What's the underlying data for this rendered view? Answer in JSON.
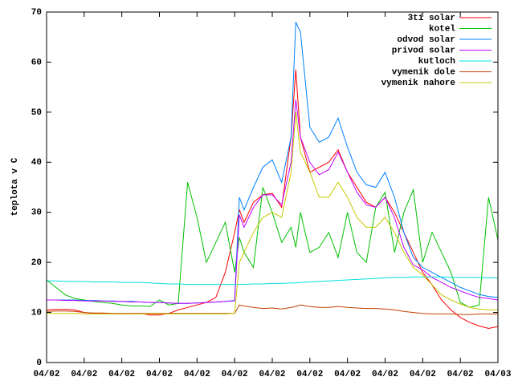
{
  "chart_data": {
    "type": "line",
    "ylabel": "teplota v C",
    "x": [
      0,
      0.5,
      1,
      1.5,
      2,
      2.5,
      3,
      3.5,
      4,
      4.5,
      5,
      5.5,
      6,
      6.5,
      7,
      7.5,
      8,
      8.5,
      9,
      9.5,
      10,
      10.25,
      10.5,
      11,
      11.5,
      12,
      12.5,
      13,
      13.25,
      13.5,
      14,
      14.5,
      15,
      15.5,
      16,
      16.5,
      17,
      17.5,
      18,
      18.5,
      19,
      19.5,
      20,
      20.5,
      21,
      21.5,
      22,
      22.5,
      23,
      23.5,
      24
    ],
    "xlim": [
      0,
      24
    ],
    "xticks": [
      {
        "value": 0,
        "label": "04/02"
      },
      {
        "value": 2,
        "label": "04/02"
      },
      {
        "value": 4,
        "label": "04/02"
      },
      {
        "value": 6,
        "label": "04/02"
      },
      {
        "value": 8,
        "label": "04/02"
      },
      {
        "value": 10,
        "label": "04/02"
      },
      {
        "value": 12,
        "label": "04/02"
      },
      {
        "value": 14,
        "label": "04/02"
      },
      {
        "value": 16,
        "label": "04/02"
      },
      {
        "value": 18,
        "label": "04/02"
      },
      {
        "value": 20,
        "label": "04/02"
      },
      {
        "value": 22,
        "label": "04/02"
      },
      {
        "value": 24,
        "label": "04/03"
      }
    ],
    "ylim": [
      0,
      70
    ],
    "yticks": [
      0,
      10,
      20,
      30,
      40,
      50,
      60,
      70
    ],
    "legend": "top-right",
    "series": [
      {
        "name": "3ti solar",
        "color": "#ff0000",
        "values": [
          10.5,
          10.6,
          10.6,
          10.5,
          10,
          9.8,
          9.8,
          9.7,
          9.7,
          9.7,
          9.8,
          9.5,
          9.5,
          9.8,
          10.5,
          11,
          11.5,
          12,
          13,
          18,
          26,
          30.5,
          28,
          32,
          33.5,
          33.8,
          31,
          45,
          58.5,
          45,
          38,
          39,
          40,
          42.5,
          38,
          35,
          32,
          31,
          33,
          30,
          26,
          22,
          18,
          15.5,
          12.5,
          10.5,
          9,
          8,
          7.3,
          6.8,
          7.2
        ]
      },
      {
        "name": "kotel",
        "color": "#00c000",
        "values": [
          16.5,
          15,
          13.5,
          12.8,
          12.5,
          12.2,
          12,
          11.8,
          11.5,
          11.3,
          11.3,
          11.2,
          12.5,
          11.5,
          11.8,
          36,
          29,
          20,
          24,
          28,
          18,
          25,
          22,
          19,
          35,
          30,
          24,
          27,
          23,
          30,
          22,
          23,
          26,
          21,
          30,
          22,
          20,
          31,
          34,
          22,
          30,
          34.5,
          20,
          26,
          22,
          18,
          12,
          11,
          11.5,
          33,
          24.5
        ]
      },
      {
        "name": "odvod solar",
        "color": "#0080ff",
        "values": [
          12.5,
          12.5,
          12.5,
          12.5,
          12.4,
          12.4,
          12.3,
          12.3,
          12.2,
          12.2,
          12.1,
          12,
          12,
          11.9,
          11.8,
          11.8,
          11.9,
          12,
          12.1,
          12.2,
          12.4,
          33,
          30.5,
          35,
          39,
          40.5,
          36,
          45,
          68,
          66,
          47,
          44,
          45,
          48.8,
          43,
          38,
          35.5,
          35,
          38,
          33,
          26,
          21,
          19,
          18,
          17,
          16,
          15,
          14.3,
          13.6,
          13.2,
          13
        ]
      },
      {
        "name": "privod solar",
        "color": "#c000ff",
        "values": [
          12.5,
          12.5,
          12.4,
          12.4,
          12.3,
          12.3,
          12.3,
          12.2,
          12.2,
          12.1,
          12.1,
          12,
          12,
          11.9,
          11.8,
          11.8,
          11.9,
          12,
          12.1,
          12.2,
          12.3,
          29.5,
          27,
          31,
          33.5,
          33.5,
          31.5,
          40,
          52.5,
          45,
          40,
          37.5,
          38.5,
          42,
          38,
          34,
          31.5,
          31,
          33,
          29,
          23,
          19.5,
          18.5,
          17,
          16,
          15,
          14.3,
          13.6,
          13,
          12.8,
          12.5
        ]
      },
      {
        "name": "kutloch",
        "color": "#00e0e0",
        "values": [
          16.3,
          16.3,
          16.2,
          16.2,
          16.2,
          16.1,
          16.1,
          16.1,
          16,
          16,
          16,
          15.9,
          15.8,
          15.7,
          15.7,
          15.6,
          15.6,
          15.6,
          15.6,
          15.6,
          15.6,
          15.6,
          15.6,
          15.7,
          15.7,
          15.8,
          15.8,
          15.9,
          15.9,
          16,
          16.1,
          16.2,
          16.3,
          16.4,
          16.5,
          16.6,
          16.7,
          16.8,
          16.9,
          17,
          17,
          17.1,
          17.1,
          17.1,
          17.1,
          17,
          17,
          17,
          17,
          16.9,
          16.9
        ]
      },
      {
        "name": "vymenik dole",
        "color": "#c04000",
        "values": [
          10.2,
          10.3,
          10.3,
          10.2,
          10,
          9.9,
          9.9,
          9.8,
          9.8,
          9.8,
          9.8,
          9.8,
          9.8,
          9.8,
          9.8,
          9.8,
          9.8,
          9.8,
          9.8,
          9.8,
          9.8,
          11.5,
          11.3,
          11,
          10.8,
          10.9,
          10.7,
          11,
          11.2,
          11.5,
          11.2,
          11,
          11,
          11.2,
          11,
          10.9,
          10.8,
          10.8,
          10.7,
          10.5,
          10.2,
          10,
          9.8,
          9.7,
          9.7,
          9.7,
          9.6,
          9.6,
          9.7,
          9.7,
          9.7
        ]
      },
      {
        "name": "vymenik nahore",
        "color": "#c8c800",
        "values": [
          9.8,
          9.8,
          9.8,
          9.8,
          9.7,
          9.7,
          9.7,
          9.7,
          9.7,
          9.7,
          9.7,
          9.7,
          9.7,
          9.7,
          9.7,
          9.7,
          9.7,
          9.7,
          9.7,
          9.7,
          9.8,
          20,
          22,
          26,
          29,
          30,
          29,
          38,
          50,
          42,
          38,
          33,
          33,
          36,
          33,
          29,
          27,
          27,
          29,
          26,
          22,
          19,
          17.5,
          15.5,
          13.5,
          12.5,
          11.7,
          11,
          10.7,
          10.5,
          10.5
        ]
      }
    ]
  }
}
